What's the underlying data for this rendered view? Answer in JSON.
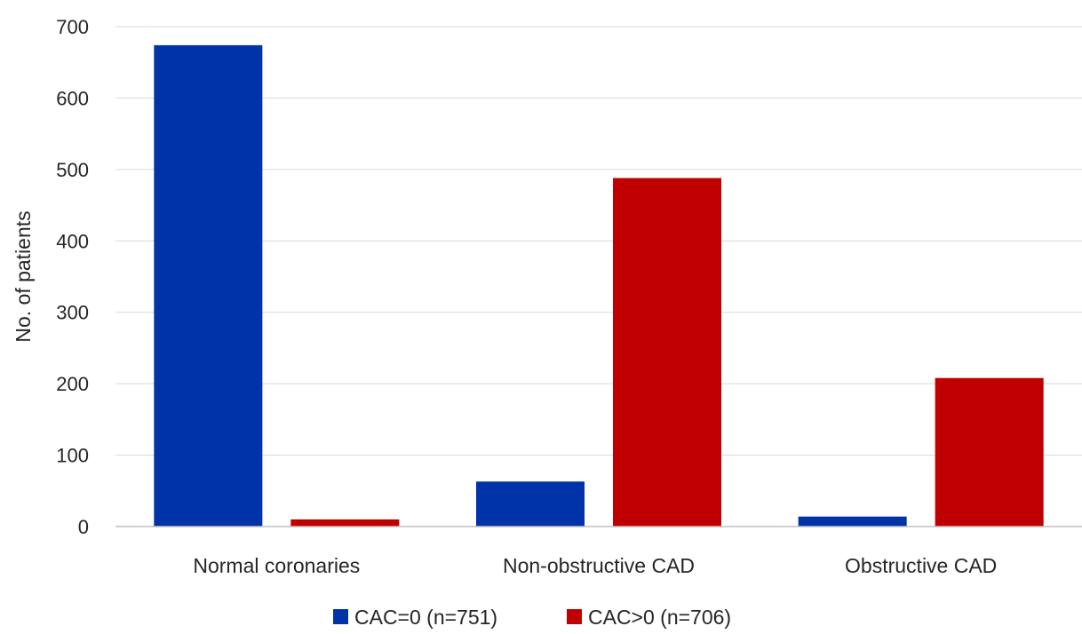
{
  "chart_data": {
    "type": "bar",
    "title": "",
    "xlabel": "",
    "ylabel": "No. of patients",
    "ylim": [
      0,
      700
    ],
    "yticks": [
      0,
      100,
      200,
      300,
      400,
      500,
      600,
      700
    ],
    "grid": true,
    "legend_position": "bottom",
    "categories": [
      "Normal coronaries",
      "Non-obstructive CAD",
      "Obstructive CAD"
    ],
    "series": [
      {
        "name": "CAC=0 (n=751)",
        "color": "#0033a8",
        "values": [
          674,
          63,
          14
        ]
      },
      {
        "name": "CAC>0 (n=706)",
        "color": "#c00000",
        "values": [
          10,
          488,
          208
        ]
      }
    ]
  }
}
